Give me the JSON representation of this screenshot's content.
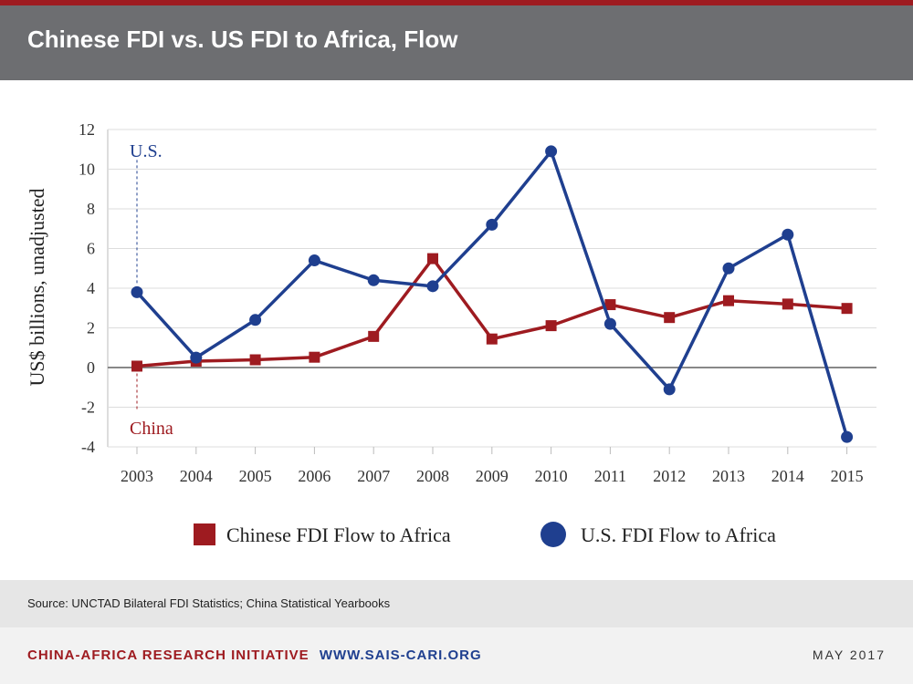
{
  "header": {
    "title": "Chinese FDI vs. US FDI to Africa, Flow"
  },
  "source": "Source: UNCTAD Bilateral FDI Statistics; China Statistical Yearbooks",
  "footer": {
    "org": "CHINA-AFRICA RESEARCH INITIATIVE",
    "site": "WWW.SAIS-CARI.ORG",
    "date": "MAY 2017"
  },
  "colors": {
    "china": "#9e1b20",
    "us": "#1f3f8f",
    "header_bg": "#6d6e71",
    "grid": "#dddddd",
    "zero_line": "#888888"
  },
  "chart_data": {
    "type": "line",
    "title": "Chinese FDI vs. US FDI to Africa, Flow",
    "ylabel": "US$ billions, unadjusted",
    "xlabel": "",
    "categories": [
      "2003",
      "2004",
      "2005",
      "2006",
      "2007",
      "2008",
      "2009",
      "2010",
      "2011",
      "2012",
      "2013",
      "2014",
      "2015"
    ],
    "yticks": [
      -4,
      -2,
      0,
      2,
      4,
      6,
      8,
      10,
      12
    ],
    "ylim": [
      -4,
      12
    ],
    "grid": true,
    "legend_position": "bottom",
    "series": [
      {
        "name": "Chinese FDI Flow to Africa",
        "marker": "square",
        "color": "#9e1b20",
        "annotation": "China",
        "values": [
          0.07,
          0.32,
          0.39,
          0.52,
          1.57,
          5.49,
          1.44,
          2.11,
          3.17,
          2.52,
          3.37,
          3.2,
          2.98
        ]
      },
      {
        "name": "U.S. FDI Flow to Africa",
        "marker": "circle",
        "color": "#1f3f8f",
        "annotation": "U.S.",
        "values": [
          3.8,
          0.5,
          2.4,
          5.4,
          4.4,
          4.1,
          7.2,
          10.9,
          2.2,
          -1.1,
          5.0,
          6.7,
          -3.5
        ]
      }
    ]
  }
}
